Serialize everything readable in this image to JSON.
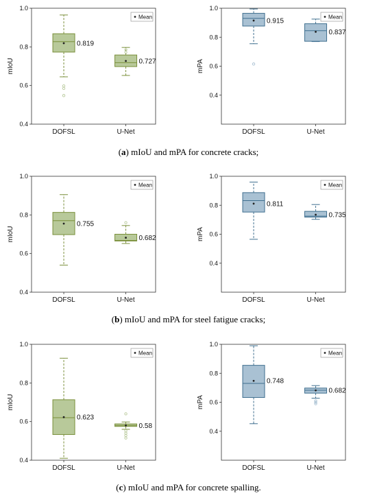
{
  "captions": [
    {
      "letter": "a",
      "text": " mIoU and mPA for concrete cracks;",
      "open": "(",
      "close": ")"
    },
    {
      "letter": "b",
      "text": " mIoU and mPA for steel fatigue cracks;",
      "open": "(",
      "close": ")"
    },
    {
      "letter": "c",
      "text": " mIoU and mPA for concrete spalling.",
      "open": "(",
      "close": ")"
    }
  ],
  "colors": {
    "green_fill": "#b8c99a",
    "green_line": "#7a8f3a",
    "blue_fill": "#a9c1d3",
    "blue_line": "#3f6f8f"
  },
  "chart_data": [
    {
      "id": "a-miou",
      "type": "box",
      "ylabel": "mIoU",
      "ylim": [
        0.4,
        1.0
      ],
      "yticks": [
        "0.4",
        "0.6",
        "0.8",
        "1.0"
      ],
      "ytick_values": [
        0.4,
        0.6,
        0.8,
        1.0
      ],
      "color": "green",
      "legend": "Mean",
      "categories": [
        "DOFSL",
        "U-Net"
      ],
      "boxes": [
        {
          "category": "DOFSL",
          "min": 0.645,
          "q1": 0.773,
          "median": 0.827,
          "q3": 0.868,
          "max": 0.965,
          "mean": 0.819,
          "mean_label": "0.819",
          "outliers": [
            0.598,
            0.585,
            0.548
          ]
        },
        {
          "category": "U-Net",
          "min": 0.652,
          "q1": 0.698,
          "median": 0.718,
          "q3": 0.758,
          "max": 0.797,
          "mean": 0.727,
          "mean_label": "0.727",
          "outliers": [
            0.785,
            0.772
          ]
        }
      ]
    },
    {
      "id": "a-mpa",
      "type": "box",
      "ylabel": "mPA",
      "ylim": [
        0.2,
        1.0
      ],
      "yticks": [
        "0.4",
        "0.6",
        "0.8",
        "1.0"
      ],
      "ytick_values": [
        0.4,
        0.6,
        0.8,
        1.0
      ],
      "color": "blue",
      "legend": "Mean",
      "categories": [
        "DOFSL",
        "U-Net"
      ],
      "boxes": [
        {
          "category": "DOFSL",
          "min": 0.755,
          "q1": 0.877,
          "median": 0.93,
          "q3": 0.965,
          "max": 0.995,
          "mean": 0.915,
          "mean_label": "0.915",
          "outliers": [
            0.615
          ]
        },
        {
          "category": "U-Net",
          "min": 0.77,
          "q1": 0.772,
          "median": 0.845,
          "q3": 0.893,
          "max": 0.925,
          "mean": 0.837,
          "mean_label": "0.837",
          "outliers": []
        }
      ]
    },
    {
      "id": "b-miou",
      "type": "box",
      "ylabel": "mIoU",
      "ylim": [
        0.4,
        1.0
      ],
      "yticks": [
        "0.4",
        "0.6",
        "0.8",
        "1.0"
      ],
      "ytick_values": [
        0.4,
        0.6,
        0.8,
        1.0
      ],
      "color": "green",
      "legend": "Mean",
      "categories": [
        "DOFSL",
        "U-Net"
      ],
      "boxes": [
        {
          "category": "DOFSL",
          "min": 0.54,
          "q1": 0.698,
          "median": 0.77,
          "q3": 0.813,
          "max": 0.905,
          "mean": 0.755,
          "mean_label": "0.755",
          "outliers": []
        },
        {
          "category": "U-Net",
          "min": 0.652,
          "q1": 0.665,
          "median": 0.668,
          "q3": 0.7,
          "max": 0.745,
          "mean": 0.682,
          "mean_label": "0.682",
          "outliers": [
            0.76
          ]
        }
      ]
    },
    {
      "id": "b-mpa",
      "type": "box",
      "ylabel": "mPA",
      "ylim": [
        0.2,
        1.0
      ],
      "yticks": [
        "0.4",
        "0.6",
        "0.8",
        "1.0"
      ],
      "ytick_values": [
        0.4,
        0.6,
        0.8,
        1.0
      ],
      "color": "blue",
      "legend": "Mean",
      "categories": [
        "DOFSL",
        "U-Net"
      ],
      "boxes": [
        {
          "category": "DOFSL",
          "min": 0.565,
          "q1": 0.753,
          "median": 0.832,
          "q3": 0.887,
          "max": 0.96,
          "mean": 0.811,
          "mean_label": "0.811",
          "outliers": []
        },
        {
          "category": "U-Net",
          "min": 0.703,
          "q1": 0.718,
          "median": 0.725,
          "q3": 0.758,
          "max": 0.805,
          "mean": 0.735,
          "mean_label": "0.735",
          "outliers": []
        }
      ]
    },
    {
      "id": "c-miou",
      "type": "box",
      "ylabel": "mIoU",
      "ylim": [
        0.4,
        1.0
      ],
      "yticks": [
        "0.4",
        "0.6",
        "0.8",
        "1.0"
      ],
      "ytick_values": [
        0.4,
        0.6,
        0.8,
        1.0
      ],
      "color": "green",
      "legend": "Mean",
      "categories": [
        "DOFSL",
        "U-Net"
      ],
      "boxes": [
        {
          "category": "DOFSL",
          "min": 0.41,
          "q1": 0.533,
          "median": 0.62,
          "q3": 0.713,
          "max": 0.928,
          "mean": 0.623,
          "mean_label": "0.623",
          "outliers": []
        },
        {
          "category": "U-Net",
          "min": 0.56,
          "q1": 0.575,
          "median": 0.58,
          "q3": 0.588,
          "max": 0.598,
          "mean": 0.58,
          "mean_label": "0.58",
          "outliers": [
            0.64,
            0.552,
            0.54,
            0.528,
            0.515
          ]
        }
      ]
    },
    {
      "id": "c-mpa",
      "type": "box",
      "ylabel": "mPA",
      "ylim": [
        0.2,
        1.0
      ],
      "yticks": [
        "0.4",
        "0.6",
        "0.8",
        "1.0"
      ],
      "ytick_values": [
        0.4,
        0.6,
        0.8,
        1.0
      ],
      "color": "blue",
      "legend": "Mean",
      "categories": [
        "DOFSL",
        "U-Net"
      ],
      "boxes": [
        {
          "category": "DOFSL",
          "min": 0.452,
          "q1": 0.633,
          "median": 0.73,
          "q3": 0.855,
          "max": 0.99,
          "mean": 0.748,
          "mean_label": "0.748",
          "outliers": []
        },
        {
          "category": "U-Net",
          "min": 0.628,
          "q1": 0.663,
          "median": 0.683,
          "q3": 0.698,
          "max": 0.715,
          "mean": 0.682,
          "mean_label": "0.682",
          "outliers": [
            0.61,
            0.6,
            0.59
          ]
        }
      ]
    }
  ]
}
